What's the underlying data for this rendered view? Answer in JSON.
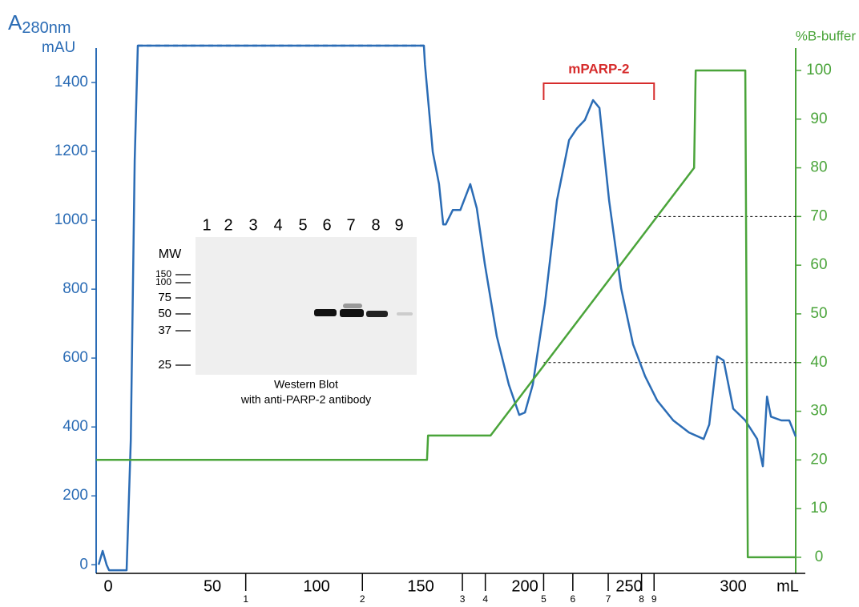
{
  "chart_data": {
    "type": "line",
    "y_label_main": "A",
    "y_label_sub": "280nm",
    "y_unit": "mAU",
    "y2_label": "%B-buffer",
    "x_unit": "mL",
    "xlim": [
      -5.8,
      334.6
    ],
    "xticks": [
      0,
      50,
      100,
      150,
      200,
      250,
      300
    ],
    "ylim": [
      -25,
      1500
    ],
    "yticks": [
      0,
      200,
      400,
      600,
      800,
      1000,
      1200,
      1400
    ],
    "y2lim": [
      -3.3,
      104.6
    ],
    "y2ticks": [
      0,
      10,
      20,
      30,
      40,
      50,
      60,
      70,
      80,
      90,
      100
    ],
    "series": [
      {
        "color": "#2b6cb5",
        "axis": "y",
        "x": [
          -4.6,
          -2.7,
          -0.8,
          0.4,
          8.8,
          10.8,
          12.7,
          14.2,
          151.5,
          152,
          155.8,
          158.8,
          160.8,
          162,
          165.4,
          169,
          173.8,
          176.9,
          180.8,
          186.5,
          192.3,
          197.3,
          200,
          203.8,
          209.6,
          215.4,
          221.2,
          225,
          228.8,
          232.7,
          235.8,
          240.4,
          246.2,
          251.9,
          257.7,
          263.5,
          271.2,
          278.8,
          285.8,
          288.5,
          292.3,
          295.4,
          300,
          305.8,
          311.5,
          314.2,
          316.2,
          318.1,
          323.1,
          326.9,
          330
        ],
        "values": [
          0,
          40,
          0,
          -16,
          -16,
          360,
          1174,
          1507,
          1507,
          1453,
          1198,
          1105,
          988,
          988,
          1030,
          1030,
          1105,
          1035,
          872,
          663,
          523,
          435,
          442,
          523,
          756,
          1058,
          1233,
          1267,
          1291,
          1349,
          1326,
          1058,
          802,
          640,
          547,
          477,
          419,
          384,
          365,
          407,
          605,
          593,
          453,
          419,
          365,
          286,
          488,
          430,
          419,
          419,
          372
        ]
      },
      {
        "color": "#2b6cb5",
        "axis": "y",
        "dashed": true,
        "x": [
          14.2,
          151.5
        ],
        "values": [
          1507,
          1507
        ]
      },
      {
        "color": "#4aa43a",
        "axis": "y2",
        "x": [
          -5.8,
          153,
          153.5,
          183.5,
          281.2,
          282,
          305.8,
          307,
          330
        ],
        "values": [
          20,
          20,
          25,
          25,
          80,
          100,
          100,
          0,
          0
        ]
      }
    ],
    "reference_lines": [
      {
        "axis": "y2",
        "value": 70,
        "x": [
          262,
          330
        ]
      },
      {
        "axis": "y2",
        "value": 40,
        "x": [
          209,
          330
        ]
      }
    ],
    "fractions": {
      "x": [
        66,
        122,
        170,
        181,
        209,
        223,
        240,
        256,
        262
      ],
      "labels": [
        "1",
        "2",
        "3",
        "4",
        "5",
        "6",
        "7",
        "8",
        "9"
      ]
    },
    "annotation": {
      "text": "mPARP-2",
      "x": [
        209,
        262
      ],
      "color": "#d62c2c"
    }
  },
  "western_blot": {
    "lanes": [
      "1",
      "2",
      "3",
      "4",
      "5",
      "6",
      "7",
      "8",
      "9"
    ],
    "mw_title": "MW",
    "mw_markers": [
      "150",
      "100",
      "75",
      "50",
      "37",
      "25"
    ],
    "caption": [
      "Western Blot",
      "with anti-PARP-2 antibody"
    ]
  }
}
